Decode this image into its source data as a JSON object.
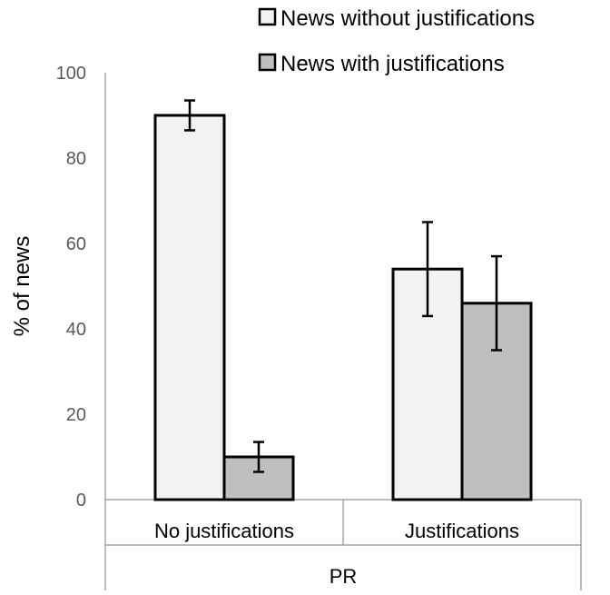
{
  "chart_data": {
    "type": "bar",
    "title": "",
    "xlabel": "PR",
    "ylabel": "% of news",
    "ylim": [
      0,
      100
    ],
    "yticks": [
      0,
      20,
      40,
      60,
      80,
      100
    ],
    "grid": false,
    "legend_position": "top-right",
    "categories": [
      "No justifications",
      "Justifications"
    ],
    "group_label": "PR",
    "series": [
      {
        "name": "News without justifications",
        "values": [
          90,
          54
        ],
        "error": [
          3.5,
          11
        ],
        "color": "#f2f2f2"
      },
      {
        "name": "News with justifications",
        "values": [
          10,
          46
        ],
        "error": [
          3.5,
          11
        ],
        "color": "#bfbfbf"
      }
    ]
  }
}
